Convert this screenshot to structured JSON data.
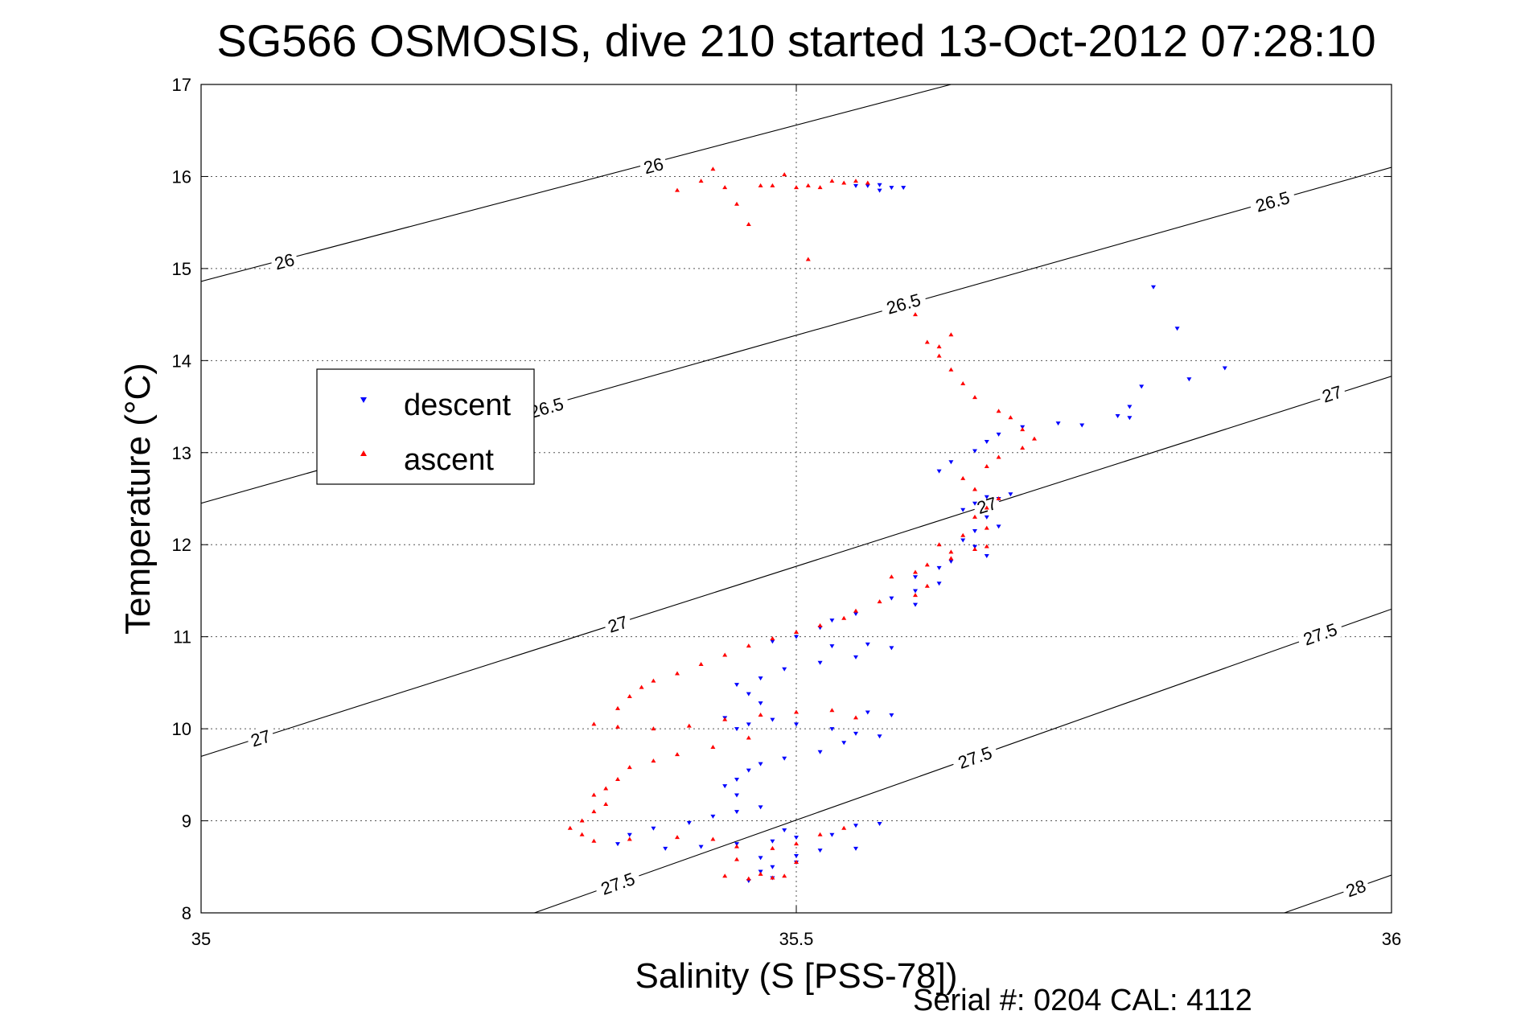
{
  "chart_data": {
    "type": "scatter",
    "title": "SG566 OSMOSIS, dive 210 started 13-Oct-2012 07:28:10",
    "xlabel": "Salinity (S [PSS-78])",
    "ylabel": "Temperature (°C)",
    "xlim": [
      35,
      36
    ],
    "ylim": [
      8,
      17
    ],
    "xticks": [
      35,
      35.5,
      36
    ],
    "xtick_labels": [
      "35",
      "35.5",
      "36"
    ],
    "yticks": [
      8,
      9,
      10,
      11,
      12,
      13,
      14,
      15,
      16,
      17
    ],
    "ytick_labels": [
      "8",
      "9",
      "10",
      "11",
      "12",
      "13",
      "14",
      "15",
      "16",
      "17"
    ],
    "grid": true,
    "legend_position": "upper-left",
    "footer": "Serial #: 0204  CAL: 4112",
    "contours": [
      {
        "level": "26",
        "line": [
          [
            35,
            14.86
          ],
          [
            35.63,
            17.0
          ]
        ],
        "labels": [
          {
            "text": "26",
            "x": 35.07,
            "y": 15.08
          },
          {
            "text": "26",
            "x": 35.38,
            "y": 16.12
          }
        ]
      },
      {
        "level": "26.5",
        "line": [
          [
            35,
            12.45
          ],
          [
            36,
            16.1
          ]
        ],
        "labels": [
          {
            "text": "26.5",
            "x": 35.29,
            "y": 13.49
          },
          {
            "text": "26.5",
            "x": 35.59,
            "y": 14.62
          },
          {
            "text": "26.5",
            "x": 35.9,
            "y": 15.73
          }
        ]
      },
      {
        "level": "27",
        "line": [
          [
            35,
            9.7
          ],
          [
            36,
            13.83
          ]
        ],
        "labels": [
          {
            "text": "27",
            "x": 35.05,
            "y": 9.9
          },
          {
            "text": "27",
            "x": 35.35,
            "y": 11.14
          },
          {
            "text": "27",
            "x": 35.66,
            "y": 12.43
          },
          {
            "text": "27",
            "x": 35.95,
            "y": 13.64
          }
        ]
      },
      {
        "level": "27.5",
        "line": [
          [
            35.28,
            8.0
          ],
          [
            36,
            11.3
          ]
        ],
        "labels": [
          {
            "text": "27.5",
            "x": 35.35,
            "y": 8.32
          },
          {
            "text": "27.5",
            "x": 35.65,
            "y": 9.69
          },
          {
            "text": "27.5",
            "x": 35.94,
            "y": 11.03
          }
        ]
      },
      {
        "level": "28",
        "line": [
          [
            35.91,
            8.0
          ],
          [
            36,
            8.41
          ]
        ],
        "labels": [
          {
            "text": "28",
            "x": 35.97,
            "y": 8.27
          }
        ]
      }
    ],
    "series": [
      {
        "name": "descent",
        "color": "#0000ff",
        "marker": "triangle-down",
        "points": [
          [
            35.55,
            15.9
          ],
          [
            35.56,
            15.9
          ],
          [
            35.57,
            15.91
          ],
          [
            35.58,
            15.88
          ],
          [
            35.59,
            15.88
          ],
          [
            35.57,
            15.85
          ],
          [
            35.8,
            14.8
          ],
          [
            35.82,
            14.35
          ],
          [
            35.83,
            13.8
          ],
          [
            35.86,
            13.92
          ],
          [
            35.79,
            13.72
          ],
          [
            35.78,
            13.5
          ],
          [
            35.77,
            13.4
          ],
          [
            35.74,
            13.3
          ],
          [
            35.78,
            13.38
          ],
          [
            35.72,
            13.32
          ],
          [
            35.69,
            13.28
          ],
          [
            35.67,
            13.2
          ],
          [
            35.66,
            13.12
          ],
          [
            35.65,
            13.02
          ],
          [
            35.63,
            12.9
          ],
          [
            35.62,
            12.8
          ],
          [
            35.68,
            12.55
          ],
          [
            35.67,
            12.5
          ],
          [
            35.66,
            12.52
          ],
          [
            35.65,
            12.45
          ],
          [
            35.64,
            12.38
          ],
          [
            35.66,
            12.3
          ],
          [
            35.67,
            12.2
          ],
          [
            35.65,
            12.15
          ],
          [
            35.64,
            12.05
          ],
          [
            35.65,
            11.98
          ],
          [
            35.66,
            11.88
          ],
          [
            35.63,
            11.82
          ],
          [
            35.62,
            11.75
          ],
          [
            35.6,
            11.65
          ],
          [
            35.62,
            11.58
          ],
          [
            35.6,
            11.5
          ],
          [
            35.58,
            11.42
          ],
          [
            35.6,
            11.35
          ],
          [
            35.55,
            11.25
          ],
          [
            35.53,
            11.18
          ],
          [
            35.52,
            11.1
          ],
          [
            35.5,
            11.0
          ],
          [
            35.48,
            10.95
          ],
          [
            35.53,
            10.9
          ],
          [
            35.56,
            10.92
          ],
          [
            35.58,
            10.88
          ],
          [
            35.55,
            10.78
          ],
          [
            35.52,
            10.72
          ],
          [
            35.49,
            10.65
          ],
          [
            35.47,
            10.55
          ],
          [
            35.45,
            10.48
          ],
          [
            35.46,
            10.38
          ],
          [
            35.47,
            10.28
          ],
          [
            35.48,
            10.1
          ],
          [
            35.46,
            10.05
          ],
          [
            35.45,
            10.0
          ],
          [
            35.44,
            10.12
          ],
          [
            35.5,
            10.05
          ],
          [
            35.53,
            10.0
          ],
          [
            35.55,
            9.95
          ],
          [
            35.57,
            9.92
          ],
          [
            35.58,
            10.15
          ],
          [
            35.56,
            10.18
          ],
          [
            35.54,
            9.85
          ],
          [
            35.52,
            9.75
          ],
          [
            35.49,
            9.68
          ],
          [
            35.47,
            9.62
          ],
          [
            35.46,
            9.55
          ],
          [
            35.45,
            9.45
          ],
          [
            35.44,
            9.38
          ],
          [
            35.45,
            9.28
          ],
          [
            35.47,
            9.15
          ],
          [
            35.45,
            9.1
          ],
          [
            35.43,
            9.05
          ],
          [
            35.41,
            8.98
          ],
          [
            35.38,
            8.92
          ],
          [
            35.36,
            8.85
          ],
          [
            35.35,
            8.75
          ],
          [
            35.39,
            8.7
          ],
          [
            35.42,
            8.72
          ],
          [
            35.45,
            8.75
          ],
          [
            35.48,
            8.78
          ],
          [
            35.5,
            8.82
          ],
          [
            35.53,
            8.85
          ],
          [
            35.55,
            8.95
          ],
          [
            35.57,
            8.97
          ],
          [
            35.49,
            8.9
          ],
          [
            35.47,
            8.6
          ],
          [
            35.47,
            8.45
          ],
          [
            35.48,
            8.38
          ],
          [
            35.46,
            8.35
          ],
          [
            35.48,
            8.5
          ],
          [
            35.5,
            8.62
          ],
          [
            35.52,
            8.68
          ],
          [
            35.55,
            8.7
          ],
          [
            35.5,
            8.55
          ]
        ]
      },
      {
        "name": "ascent",
        "color": "#ff0000",
        "marker": "triangle-up",
        "points": [
          [
            35.4,
            15.85
          ],
          [
            35.42,
            15.95
          ],
          [
            35.43,
            16.08
          ],
          [
            35.44,
            15.88
          ],
          [
            35.45,
            15.7
          ],
          [
            35.46,
            15.48
          ],
          [
            35.47,
            15.9
          ],
          [
            35.48,
            15.9
          ],
          [
            35.49,
            16.02
          ],
          [
            35.5,
            15.88
          ],
          [
            35.51,
            15.9
          ],
          [
            35.52,
            15.88
          ],
          [
            35.53,
            15.95
          ],
          [
            35.54,
            15.93
          ],
          [
            35.55,
            15.95
          ],
          [
            35.56,
            15.93
          ],
          [
            35.51,
            15.1
          ],
          [
            35.6,
            14.5
          ],
          [
            35.61,
            14.2
          ],
          [
            35.62,
            14.15
          ],
          [
            35.63,
            14.28
          ],
          [
            35.62,
            14.05
          ],
          [
            35.63,
            13.9
          ],
          [
            35.64,
            13.75
          ],
          [
            35.65,
            13.6
          ],
          [
            35.67,
            13.45
          ],
          [
            35.68,
            13.38
          ],
          [
            35.69,
            13.25
          ],
          [
            35.7,
            13.15
          ],
          [
            35.69,
            13.05
          ],
          [
            35.67,
            12.95
          ],
          [
            35.66,
            12.85
          ],
          [
            35.64,
            12.72
          ],
          [
            35.65,
            12.6
          ],
          [
            35.67,
            12.5
          ],
          [
            35.66,
            12.4
          ],
          [
            35.65,
            12.3
          ],
          [
            35.66,
            12.18
          ],
          [
            35.64,
            12.1
          ],
          [
            35.62,
            12.0
          ],
          [
            35.63,
            11.92
          ],
          [
            35.65,
            11.95
          ],
          [
            35.66,
            11.98
          ],
          [
            35.63,
            11.85
          ],
          [
            35.61,
            11.78
          ],
          [
            35.6,
            11.7
          ],
          [
            35.58,
            11.65
          ],
          [
            35.61,
            11.55
          ],
          [
            35.6,
            11.45
          ],
          [
            35.57,
            11.38
          ],
          [
            35.55,
            11.28
          ],
          [
            35.54,
            11.2
          ],
          [
            35.52,
            11.12
          ],
          [
            35.5,
            11.05
          ],
          [
            35.48,
            10.98
          ],
          [
            35.46,
            10.9
          ],
          [
            35.44,
            10.8
          ],
          [
            35.42,
            10.7
          ],
          [
            35.4,
            10.6
          ],
          [
            35.38,
            10.52
          ],
          [
            35.37,
            10.45
          ],
          [
            35.36,
            10.35
          ],
          [
            35.35,
            10.22
          ],
          [
            35.33,
            10.05
          ],
          [
            35.35,
            10.02
          ],
          [
            35.38,
            10.0
          ],
          [
            35.41,
            10.03
          ],
          [
            35.44,
            10.1
          ],
          [
            35.47,
            10.15
          ],
          [
            35.5,
            10.18
          ],
          [
            35.53,
            10.2
          ],
          [
            35.55,
            10.12
          ],
          [
            35.46,
            9.9
          ],
          [
            35.43,
            9.8
          ],
          [
            35.4,
            9.72
          ],
          [
            35.38,
            9.65
          ],
          [
            35.36,
            9.58
          ],
          [
            35.35,
            9.45
          ],
          [
            35.34,
            9.35
          ],
          [
            35.33,
            9.28
          ],
          [
            35.34,
            9.18
          ],
          [
            35.33,
            9.1
          ],
          [
            35.32,
            9.0
          ],
          [
            35.31,
            8.92
          ],
          [
            35.32,
            8.85
          ],
          [
            35.33,
            8.78
          ],
          [
            35.36,
            8.8
          ],
          [
            35.4,
            8.82
          ],
          [
            35.43,
            8.8
          ],
          [
            35.45,
            8.72
          ],
          [
            35.48,
            8.7
          ],
          [
            35.5,
            8.75
          ],
          [
            35.52,
            8.85
          ],
          [
            35.54,
            8.92
          ],
          [
            35.47,
            8.42
          ],
          [
            35.48,
            8.38
          ],
          [
            35.46,
            8.37
          ],
          [
            35.49,
            8.4
          ],
          [
            35.44,
            8.4
          ],
          [
            35.45,
            8.58
          ],
          [
            35.5,
            8.55
          ]
        ]
      }
    ]
  }
}
